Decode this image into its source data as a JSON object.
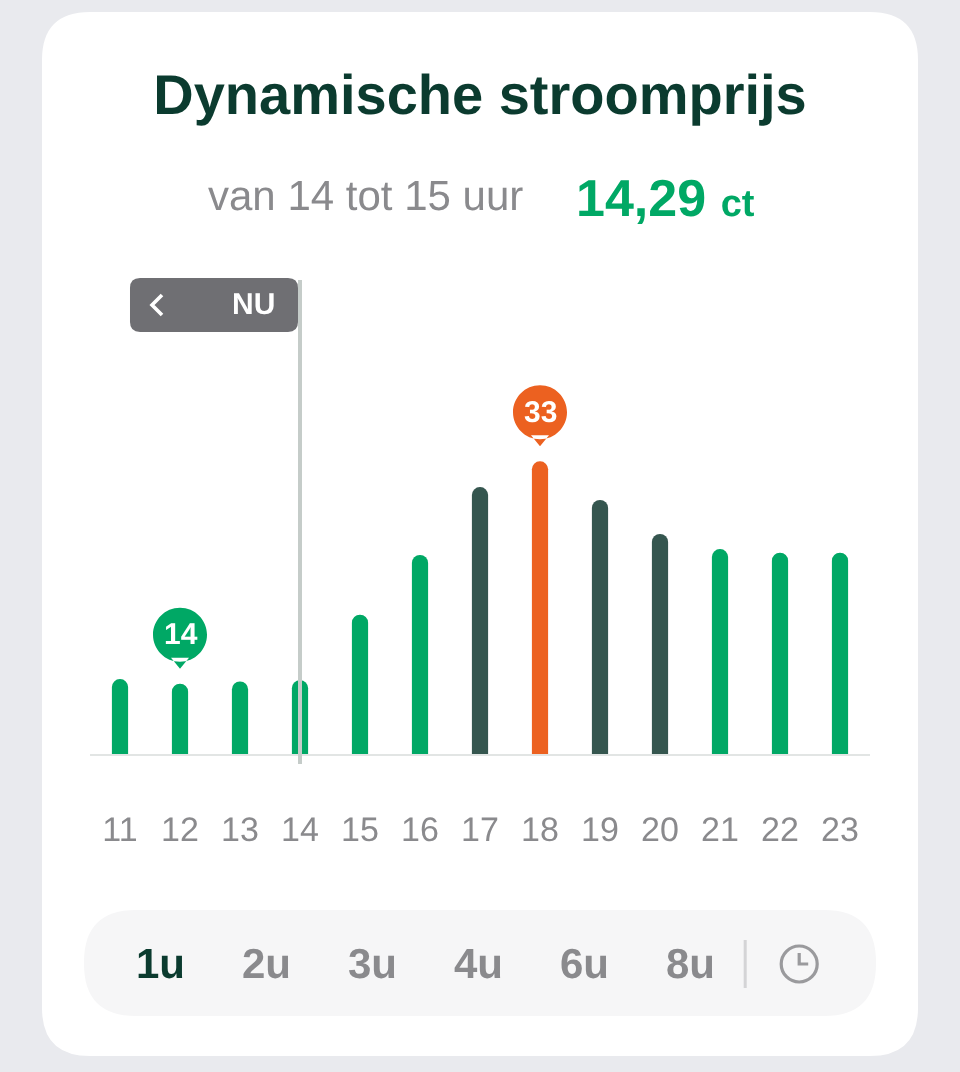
{
  "chart_data": {
    "type": "bar",
    "title": "Dynamische stroomprijs",
    "subtitle": "van 14 tot 15 uur",
    "annotations": [
      "14,29 ct",
      "1u",
      "2u",
      "3u",
      "4u",
      "6u",
      "8u"
    ],
    "categories": [
      "11",
      "12",
      "13",
      "14",
      "15",
      "16",
      "17",
      "18",
      "19",
      "20",
      "21",
      "22",
      "23"
    ],
    "values": [
      14.4,
      14,
      14.2,
      14.3,
      19.9,
      25,
      30.8,
      33,
      29.7,
      26.8,
      25.5,
      25.2,
      25.2
    ],
    "colors": [
      "#00a865",
      "#00a865",
      "#00a865",
      "#00a865",
      "#00a865",
      "#00a865",
      "#35564f",
      "#ec6120",
      "#35564f",
      "#35564f",
      "#00a865",
      "#00a865",
      "#00a865"
    ],
    "value_labels": [
      null,
      "14",
      null,
      null,
      null,
      null,
      null,
      "33",
      null,
      null,
      null,
      null,
      null
    ],
    "ylim": [
      8,
      49
    ],
    "ref_lines": [
      {
        "axis": "x",
        "value": "14",
        "label": "NU",
        "color": "#c5ccc9"
      }
    ],
    "tick_labels": "x"
  }
}
